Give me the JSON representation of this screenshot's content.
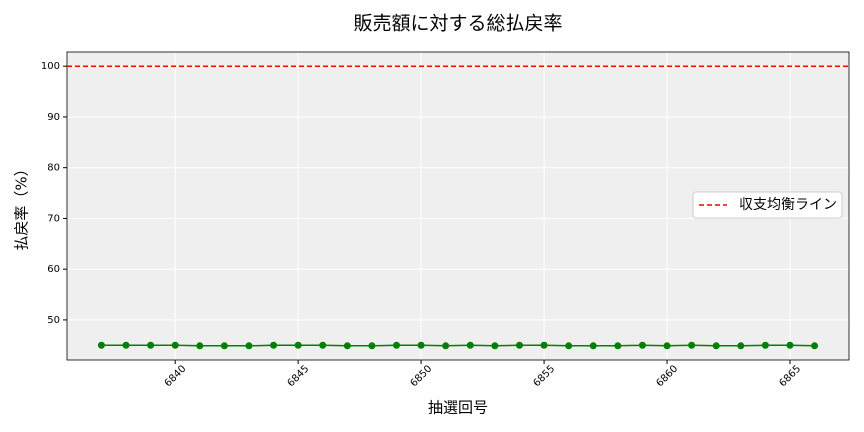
{
  "chart_data": {
    "type": "line",
    "title": "販売額に対する総払戻率",
    "x_label": "抽選回号",
    "y_label": "払戻率（%）",
    "x": [
      6837,
      6838,
      6839,
      6840,
      6841,
      6842,
      6843,
      6844,
      6845,
      6846,
      6847,
      6848,
      6849,
      6850,
      6851,
      6852,
      6853,
      6854,
      6855,
      6856,
      6857,
      6858,
      6859,
      6860,
      6861,
      6862,
      6863,
      6864,
      6865,
      6866
    ],
    "series": [
      {
        "color": "#008000",
        "values": [
          45,
          45,
          45,
          45,
          44.9,
          44.9,
          44.9,
          45,
          45,
          45,
          44.9,
          44.9,
          45,
          45,
          44.9,
          45,
          44.9,
          45,
          45,
          44.9,
          44.9,
          44.9,
          45,
          44.9,
          45,
          44.9,
          44.9,
          45,
          45,
          44.9
        ]
      }
    ],
    "reference_lines": [
      {
        "name": "収支均衡ライン",
        "value": 100,
        "color": "#ff0000"
      }
    ],
    "xlim": [
      6835.6,
      6867.4
    ],
    "xticks": [
      6840,
      6845,
      6850,
      6855,
      6860,
      6865
    ],
    "ylim": [
      42.1,
      102.8
    ],
    "yticks": [
      50,
      60,
      70,
      80,
      90,
      100
    ],
    "grid": true,
    "legend": "right"
  }
}
